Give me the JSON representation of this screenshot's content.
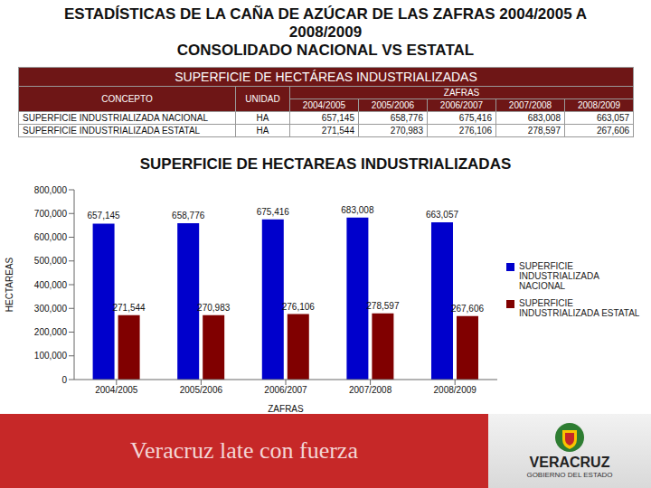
{
  "header": {
    "title": "ESTADÍSTICAS DE LA CAÑA DE AZÚCAR DE LAS ZAFRAS 2004/2005 A 2008/2009",
    "subtitle": "CONSOLIDADO NACIONAL VS ESTATAL"
  },
  "table": {
    "title": "SUPERFICIE DE HECTÁREAS INDUSTRIALIZADAS",
    "columns": [
      "CONCEPTO",
      "UNIDAD"
    ],
    "group": "ZAFRAS",
    "years": [
      "2004/2005",
      "2005/2006",
      "2006/2007",
      "2007/2008",
      "2008/2009"
    ],
    "rows": [
      [
        "SUPERFICIE INDUSTRIALIZADA NACIONAL",
        "HA",
        "657,145",
        "658,776",
        "675,416",
        "683,008",
        "663,057"
      ],
      [
        "SUPERFICIE INDUSTRIALIZADA ESTATAL",
        "HA",
        "271,544",
        "270,983",
        "276,106",
        "278,597",
        "267,606"
      ]
    ]
  },
  "chart_data": {
    "type": "bar",
    "title": "SUPERFICIE DE HECTAREAS INDUSTRIALIZADAS",
    "x_label": "ZAFRAS",
    "y_label": "HECTAREAS",
    "categories": [
      "2004/2005",
      "2005/2006",
      "2006/2007",
      "2007/2008",
      "2008/2009"
    ],
    "series": [
      {
        "name": "SUPERFICIE INDUSTRIALIZADA NACIONAL",
        "color": "#0000cc",
        "values": [
          657145,
          658776,
          675416,
          683008,
          663057
        ],
        "value_labels": [
          "657,145",
          "658,776",
          "675,416",
          "683,008",
          "663,057"
        ]
      },
      {
        "name": "SUPERFICIE INDUSTRIALIZADA ESTATAL",
        "color": "#800000",
        "values": [
          271544,
          270983,
          276106,
          278597,
          267606
        ],
        "value_labels": [
          "271,544",
          "270,983",
          "276,106",
          "278,597",
          "267,606"
        ]
      }
    ],
    "ylim": [
      0,
      800000
    ],
    "yticks": [
      0,
      {
        "value": 100000,
        "label": "100,000"
      },
      {
        "value": 200000,
        "label": "200,000"
      },
      {
        "value": 300000,
        "label": "300,000"
      },
      {
        "value": 400000,
        "label": "400,000"
      },
      {
        "value": 500000,
        "label": "500,000"
      },
      {
        "value": 600000,
        "label": "600,000"
      },
      {
        "value": 700000,
        "label": "700,000"
      },
      {
        "value": 800000,
        "label": "800,000"
      }
    ],
    "grid": false,
    "legend": "right",
    "data_labels": true
  },
  "footer": {
    "slogan": "Veracruz late con fuerza",
    "logo_title": "VERACRUZ",
    "logo_subtitle": "GOBIERNO DEL ESTADO"
  }
}
